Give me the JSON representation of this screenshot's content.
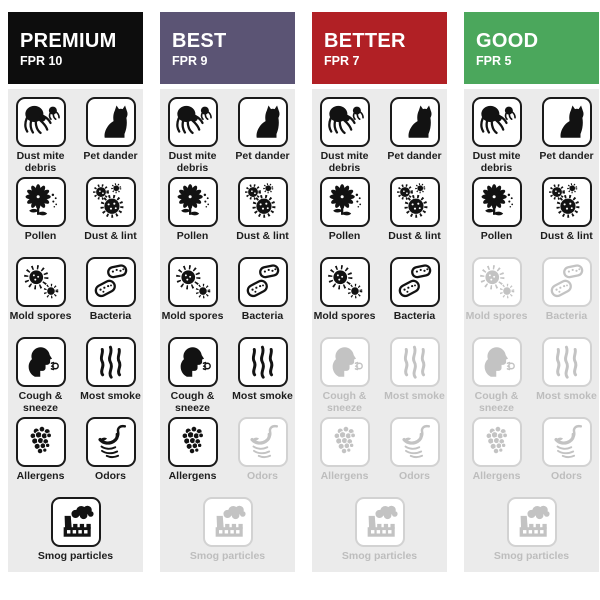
{
  "theme": {
    "background": "#ffffff",
    "panel_bg": "#ebebeb",
    "active_color": "#121212",
    "inactive_color": "#c3c3c3",
    "active_border": "#1a1a1a",
    "inactive_border": "#d2d2d2",
    "label_active": "#1d1d1d",
    "label_inactive": "#bdbdbd",
    "header_text": "#ffffff"
  },
  "items": [
    {
      "id": "dust-mite-debris",
      "label": "Dust mite debris",
      "icon": "dust-mite-icon"
    },
    {
      "id": "pet-dander",
      "label": "Pet dander",
      "icon": "cat-icon"
    },
    {
      "id": "pollen",
      "label": "Pollen",
      "icon": "flower-icon"
    },
    {
      "id": "dust-lint",
      "label": "Dust & lint",
      "icon": "lint-icon"
    },
    {
      "id": "mold-spores",
      "label": "Mold spores",
      "icon": "spore-icon"
    },
    {
      "id": "bacteria",
      "label": "Bacteria",
      "icon": "bacteria-icon"
    },
    {
      "id": "cough-sneeze",
      "label": "Cough & sneeze",
      "icon": "cough-icon"
    },
    {
      "id": "most-smoke",
      "label": "Most smoke",
      "icon": "smoke-icon"
    },
    {
      "id": "allergens",
      "label": "Allergens",
      "icon": "allergens-icon"
    },
    {
      "id": "odors",
      "label": "Odors",
      "icon": "nose-icon"
    },
    {
      "id": "smog-particles",
      "label": "Smog particles",
      "icon": "factory-icon"
    }
  ],
  "row_layout": [
    [
      0,
      1
    ],
    [
      2,
      3
    ],
    [
      4,
      5
    ],
    [
      6,
      7
    ],
    [
      8,
      9
    ],
    [
      10
    ]
  ],
  "columns": [
    {
      "id": "premium",
      "tier": "PREMIUM",
      "fpr": "FPR 10",
      "color": "#0d0d0d",
      "active": [
        true,
        true,
        true,
        true,
        true,
        true,
        true,
        true,
        true,
        true,
        true
      ]
    },
    {
      "id": "best",
      "tier": "BEST",
      "fpr": "FPR 9",
      "color": "#5b5474",
      "active": [
        true,
        true,
        true,
        true,
        true,
        true,
        true,
        true,
        true,
        false,
        false
      ]
    },
    {
      "id": "better",
      "tier": "BETTER",
      "fpr": "FPR 7",
      "color": "#b12025",
      "active": [
        true,
        true,
        true,
        true,
        true,
        true,
        false,
        false,
        false,
        false,
        false
      ]
    },
    {
      "id": "good",
      "tier": "GOOD",
      "fpr": "FPR 5",
      "color": "#4ba75c",
      "active": [
        true,
        true,
        true,
        true,
        false,
        false,
        false,
        false,
        false,
        false,
        false
      ]
    }
  ]
}
